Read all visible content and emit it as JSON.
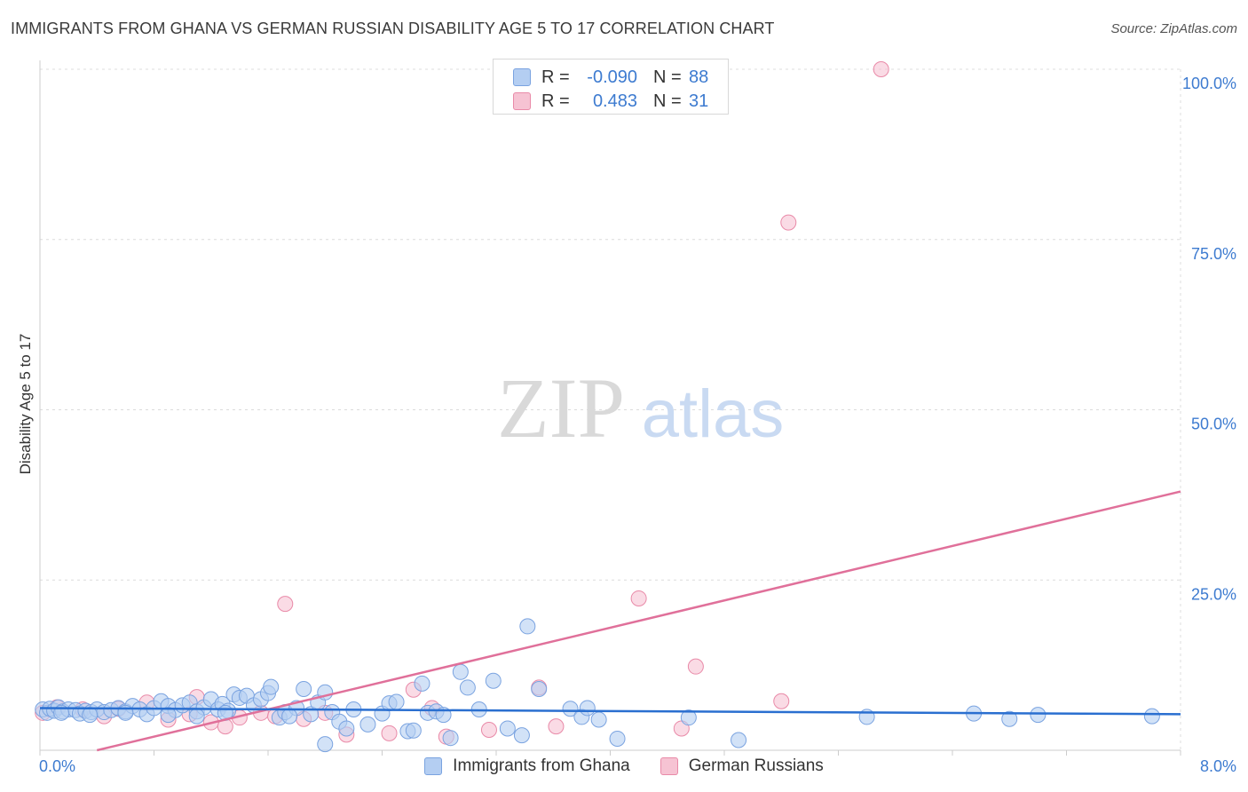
{
  "header": {
    "title": "IMMIGRANTS FROM GHANA VS GERMAN RUSSIAN DISABILITY AGE 5 TO 17 CORRELATION CHART",
    "source": "Source: ZipAtlas.com"
  },
  "watermark": {
    "zip": "ZIP",
    "atlas": "atlas"
  },
  "legend": {
    "rows": [
      {
        "r_label": "R =",
        "r_value": "-0.090",
        "n_label": "N =",
        "n_value": "88"
      },
      {
        "r_label": "R =",
        "r_value": "0.483",
        "n_label": "N =",
        "n_value": "31"
      }
    ]
  },
  "bottom_legend": {
    "ghana": "Immigrants from Ghana",
    "german_russian": "German Russians"
  },
  "chart_data": {
    "type": "scatter",
    "title": "IMMIGRANTS FROM GHANA VS GERMAN RUSSIAN DISABILITY AGE 5 TO 17 CORRELATION CHART",
    "xlabel": "",
    "ylabel": "Disability Age 5 to 17",
    "xlim": [
      0,
      8
    ],
    "ylim": [
      0,
      100
    ],
    "x_tick_labels": [
      "0.0%",
      "8.0%"
    ],
    "y_ticks": [
      25,
      50,
      75,
      100
    ],
    "y_tick_labels": [
      "25.0%",
      "50.0%",
      "75.0%",
      "100.0%"
    ],
    "grid": true,
    "colors": {
      "ghana_fill": "#b4cef2",
      "ghana_stroke": "#7aa3e0",
      "ghana_line": "#2a6fd0",
      "gr_fill": "#f6c3d3",
      "gr_stroke": "#e98aa8",
      "gr_line": "#e0709a",
      "axis_label": "#3d7bd0",
      "grid": "#dcdcdc"
    },
    "series": [
      {
        "name": "Immigrants from Ghana",
        "r": -0.09,
        "n": 88,
        "trend": {
          "x": [
            0,
            8
          ],
          "y": [
            6.2,
            5.3
          ]
        },
        "points": [
          [
            0.02,
            6.0
          ],
          [
            0.05,
            5.5
          ],
          [
            0.07,
            6.1
          ],
          [
            0.1,
            5.8
          ],
          [
            0.13,
            6.3
          ],
          [
            0.16,
            5.7
          ],
          [
            0.2,
            6.0
          ],
          [
            0.25,
            5.9
          ],
          [
            0.28,
            5.4
          ],
          [
            0.32,
            5.8
          ],
          [
            0.36,
            5.6
          ],
          [
            0.4,
            6.0
          ],
          [
            0.45,
            5.6
          ],
          [
            0.5,
            5.9
          ],
          [
            0.55,
            6.2
          ],
          [
            0.6,
            5.7
          ],
          [
            0.65,
            6.5
          ],
          [
            0.7,
            6.0
          ],
          [
            0.75,
            5.3
          ],
          [
            0.8,
            6.2
          ],
          [
            0.85,
            7.2
          ],
          [
            0.9,
            6.5
          ],
          [
            0.95,
            5.9
          ],
          [
            1.0,
            6.6
          ],
          [
            1.05,
            7.0
          ],
          [
            1.1,
            5.7
          ],
          [
            1.15,
            6.3
          ],
          [
            1.2,
            7.5
          ],
          [
            1.25,
            6.0
          ],
          [
            1.28,
            6.8
          ],
          [
            1.32,
            5.8
          ],
          [
            1.36,
            8.2
          ],
          [
            1.4,
            7.7
          ],
          [
            1.45,
            8.0
          ],
          [
            1.5,
            6.6
          ],
          [
            1.55,
            7.5
          ],
          [
            1.6,
            8.4
          ],
          [
            1.62,
            9.3
          ],
          [
            1.68,
            4.8
          ],
          [
            1.72,
            5.6
          ],
          [
            1.8,
            6.2
          ],
          [
            1.85,
            9.0
          ],
          [
            1.9,
            5.3
          ],
          [
            1.95,
            7.0
          ],
          [
            2.0,
            8.5
          ],
          [
            2.05,
            5.6
          ],
          [
            2.1,
            4.2
          ],
          [
            2.15,
            3.2
          ],
          [
            2.2,
            6.0
          ],
          [
            2.3,
            3.8
          ],
          [
            2.4,
            5.4
          ],
          [
            2.45,
            6.9
          ],
          [
            2.5,
            7.1
          ],
          [
            2.58,
            2.8
          ],
          [
            2.62,
            2.9
          ],
          [
            2.68,
            9.8
          ],
          [
            2.72,
            5.5
          ],
          [
            2.78,
            5.7
          ],
          [
            2.83,
            5.2
          ],
          [
            2.88,
            1.8
          ],
          [
            2.95,
            11.5
          ],
          [
            3.0,
            9.2
          ],
          [
            3.08,
            6.0
          ],
          [
            3.18,
            10.2
          ],
          [
            3.28,
            3.2
          ],
          [
            3.38,
            2.2
          ],
          [
            3.42,
            18.2
          ],
          [
            3.5,
            9.0
          ],
          [
            3.72,
            6.1
          ],
          [
            3.8,
            4.9
          ],
          [
            3.84,
            6.2
          ],
          [
            3.92,
            4.5
          ],
          [
            4.05,
            1.7
          ],
          [
            4.55,
            4.8
          ],
          [
            4.9,
            1.5
          ],
          [
            5.8,
            4.9
          ],
          [
            6.55,
            5.4
          ],
          [
            6.8,
            4.6
          ],
          [
            7.0,
            5.2
          ],
          [
            7.8,
            5.0
          ],
          [
            0.15,
            5.5
          ],
          [
            0.35,
            5.2
          ],
          [
            0.6,
            5.5
          ],
          [
            0.9,
            5.2
          ],
          [
            1.1,
            5.0
          ],
          [
            1.3,
            5.5
          ],
          [
            1.75,
            5.0
          ],
          [
            2.0,
            0.9
          ]
        ]
      },
      {
        "name": "German Russians",
        "r": 0.483,
        "n": 31,
        "trend": {
          "x": [
            0.4,
            8
          ],
          "y": [
            0.0,
            38.0
          ]
        },
        "points": [
          [
            0.02,
            5.5
          ],
          [
            0.12,
            6.3
          ],
          [
            0.3,
            6.0
          ],
          [
            0.55,
            6.1
          ],
          [
            0.75,
            7.0
          ],
          [
            0.9,
            4.5
          ],
          [
            1.05,
            5.3
          ],
          [
            1.1,
            7.8
          ],
          [
            1.2,
            4.1
          ],
          [
            1.3,
            3.5
          ],
          [
            1.4,
            4.8
          ],
          [
            1.55,
            5.5
          ],
          [
            1.65,
            5.0
          ],
          [
            1.72,
            21.5
          ],
          [
            1.85,
            4.6
          ],
          [
            2.0,
            5.5
          ],
          [
            2.15,
            2.3
          ],
          [
            2.45,
            2.5
          ],
          [
            2.62,
            8.9
          ],
          [
            2.75,
            6.2
          ],
          [
            2.85,
            2.0
          ],
          [
            3.15,
            3.0
          ],
          [
            3.5,
            9.2
          ],
          [
            3.62,
            3.5
          ],
          [
            4.2,
            22.3
          ],
          [
            4.5,
            3.2
          ],
          [
            4.6,
            12.3
          ],
          [
            5.2,
            7.2
          ],
          [
            5.25,
            77.5
          ],
          [
            5.9,
            100.0
          ],
          [
            0.45,
            5.0
          ]
        ]
      }
    ]
  }
}
